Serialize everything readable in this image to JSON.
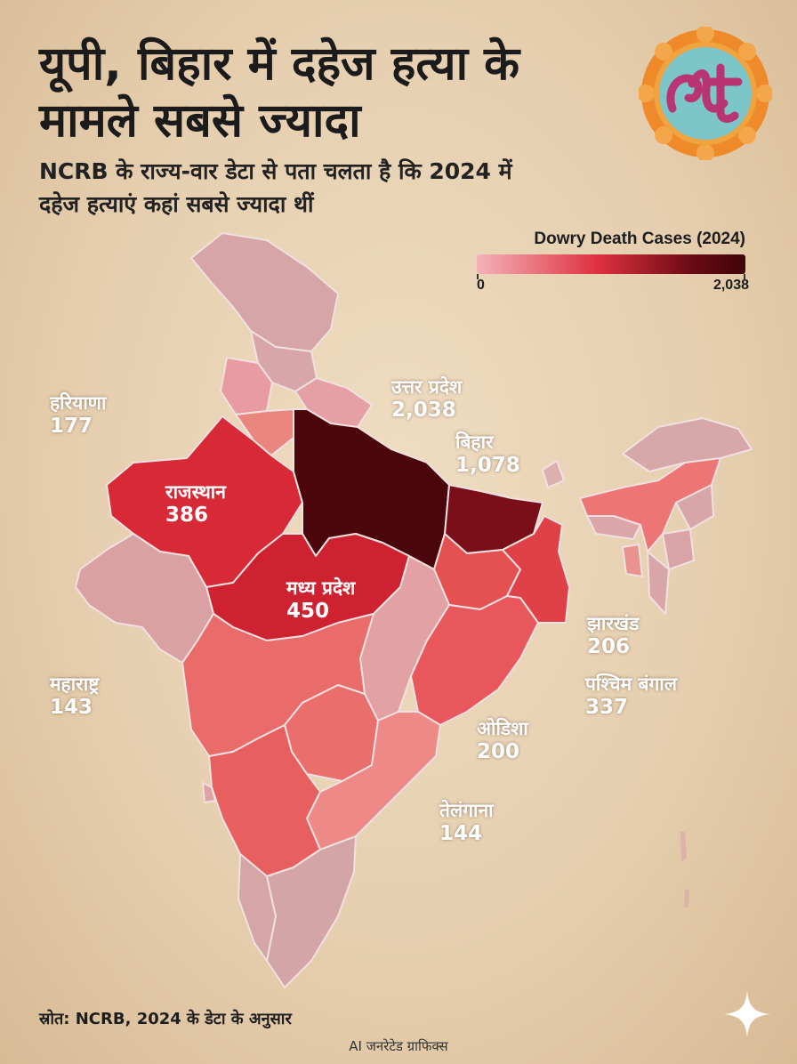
{
  "header": {
    "title": "यूपी, बिहार में दहेज हत्या के मामले सबसे ज्यादा",
    "subtitle": "NCRB के राज्य-वार डेटा से पता चलता है कि 2024 में दहेज हत्याएं कहां सबसे ज्यादा थीं"
  },
  "legend": {
    "title": "Dowry Death Cases (2024)",
    "min_label": "0",
    "max_label": "2,038",
    "min": 0,
    "max": 2038,
    "colors": [
      "#f4b3b8",
      "#de3140",
      "#6a0b14",
      "#3e0508"
    ]
  },
  "map_data": {
    "type": "choropleth",
    "region": "India",
    "labeled_states": [
      {
        "name": "उत्तर प्रदेश",
        "value": 2038,
        "value_label": "2,038"
      },
      {
        "name": "बिहार",
        "value": 1078,
        "value_label": "1,078"
      },
      {
        "name": "मध्य प्रदेश",
        "value": 450,
        "value_label": "450"
      },
      {
        "name": "राजस्थान",
        "value": 386,
        "value_label": "386"
      },
      {
        "name": "पश्चिम बंगाल",
        "value": 337,
        "value_label": "337"
      },
      {
        "name": "झारखंड",
        "value": 206,
        "value_label": "206"
      },
      {
        "name": "ओडिशा",
        "value": 200,
        "value_label": "200"
      },
      {
        "name": "हरियाणा",
        "value": 177,
        "value_label": "177"
      },
      {
        "name": "तेलंगाना",
        "value": 144,
        "value_label": "144"
      },
      {
        "name": "महाराष्ट्र",
        "value": 143,
        "value_label": "143"
      }
    ]
  },
  "footer": {
    "source": "स्रोत: NCRB, 2024 के डेटा के अनुसार",
    "credit": "AI जनरेटेड ग्राफिक्स"
  },
  "logo": {
    "icon": "lt-logo-icon",
    "colors": [
      "#ee8a2a",
      "#7cc6c9",
      "#b83472"
    ]
  },
  "sparkle": {
    "icon": "sparkle-icon"
  }
}
